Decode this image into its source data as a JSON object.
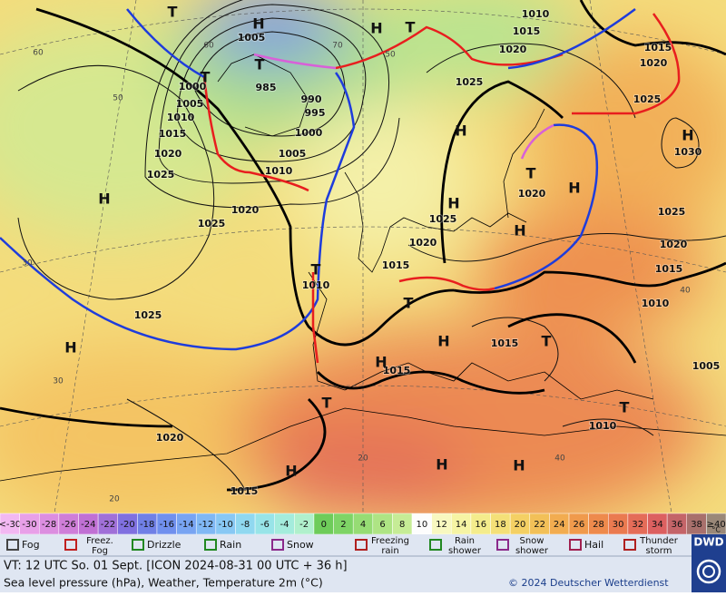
{
  "map": {
    "pressure_labels": [
      "1005",
      "985",
      "990",
      "995",
      "1000",
      "1005",
      "1010",
      "1015",
      "1020",
      "1025",
      "1025",
      "1020",
      "1000",
      "1005",
      "1010",
      "1010",
      "1015",
      "1020",
      "1025",
      "1025",
      "1020",
      "1015",
      "1010",
      "1025",
      "1020",
      "1025",
      "1020",
      "1015",
      "1010",
      "1015",
      "1015",
      "1010",
      "1005",
      "1020",
      "1015",
      "1030",
      "1015",
      "1020",
      "1025"
    ],
    "systems": [
      "T",
      "H",
      "H",
      "T",
      "T",
      "T",
      "H",
      "H",
      "H",
      "H",
      "H",
      "T",
      "H",
      "H",
      "T",
      "H",
      "T",
      "H",
      "T",
      "T",
      "H",
      "H",
      "H",
      "T"
    ],
    "latitudes": [
      "60",
      "50",
      "60",
      "50",
      "40",
      "30",
      "20",
      "40",
      "30",
      "20",
      "70"
    ]
  },
  "scale": {
    "unit": "°C",
    "cells": [
      {
        "label": "<-30",
        "color": "#f2b8f2"
      },
      {
        "label": "-30",
        "color": "#e8a0e8"
      },
      {
        "label": "-28",
        "color": "#dc8ee0"
      },
      {
        "label": "-26",
        "color": "#cf7ed8"
      },
      {
        "label": "-24",
        "color": "#c070d4"
      },
      {
        "label": "-22",
        "color": "#a070d8"
      },
      {
        "label": "-20",
        "color": "#8070e0"
      },
      {
        "label": "-18",
        "color": "#7080e6"
      },
      {
        "label": "-16",
        "color": "#7090ee"
      },
      {
        "label": "-14",
        "color": "#78a4f2"
      },
      {
        "label": "-12",
        "color": "#80b8f4"
      },
      {
        "label": "-10",
        "color": "#88c8f4"
      },
      {
        "label": "-8",
        "color": "#90d8f0"
      },
      {
        "label": "-6",
        "color": "#98e4e8"
      },
      {
        "label": "-4",
        "color": "#a4ecdc"
      },
      {
        "label": "-2",
        "color": "#b0f0cc"
      },
      {
        "label": "0",
        "color": "#6ecc5a"
      },
      {
        "label": "2",
        "color": "#7ed466"
      },
      {
        "label": "4",
        "color": "#96dc74"
      },
      {
        "label": "6",
        "color": "#aee484"
      },
      {
        "label": "8",
        "color": "#c6ec96"
      },
      {
        "label": "10",
        "color": "#fdfdfd"
      },
      {
        "label": "12",
        "color": "#f8f8c0"
      },
      {
        "label": "14",
        "color": "#f6f4a4"
      },
      {
        "label": "16",
        "color": "#f4ec8c"
      },
      {
        "label": "18",
        "color": "#f4e078"
      },
      {
        "label": "20",
        "color": "#f4d064"
      },
      {
        "label": "22",
        "color": "#f2c058"
      },
      {
        "label": "24",
        "color": "#f2ac50"
      },
      {
        "label": "26",
        "color": "#f09a4c"
      },
      {
        "label": "28",
        "color": "#ee8a4c"
      },
      {
        "label": "30",
        "color": "#ea7a50"
      },
      {
        "label": "32",
        "color": "#e46c58"
      },
      {
        "label": "34",
        "color": "#dc6060"
      },
      {
        "label": "36",
        "color": "#c46468"
      },
      {
        "label": "38",
        "color": "#a8706c"
      },
      {
        "label": "≥40",
        "color": "#9a8878"
      }
    ]
  },
  "legend": [
    "Fog",
    "Freez.\nFog",
    "Drizzle",
    "Rain",
    "Snow",
    "Freezing\nrain",
    "Rain\nshower",
    "Snow\nshower",
    "Hail",
    "Thunder\nstorm"
  ],
  "logo": "DWD",
  "footer": {
    "valid_time": "VT: 12 UTC So.  01 Sept. [ICON 2024-08-31  00 UTC + 36 h]",
    "description": "Sea level pressure (hPa), Weather, Temperature 2m (°C)",
    "copyright": "© 2024 Deutscher Wetterdienst"
  }
}
